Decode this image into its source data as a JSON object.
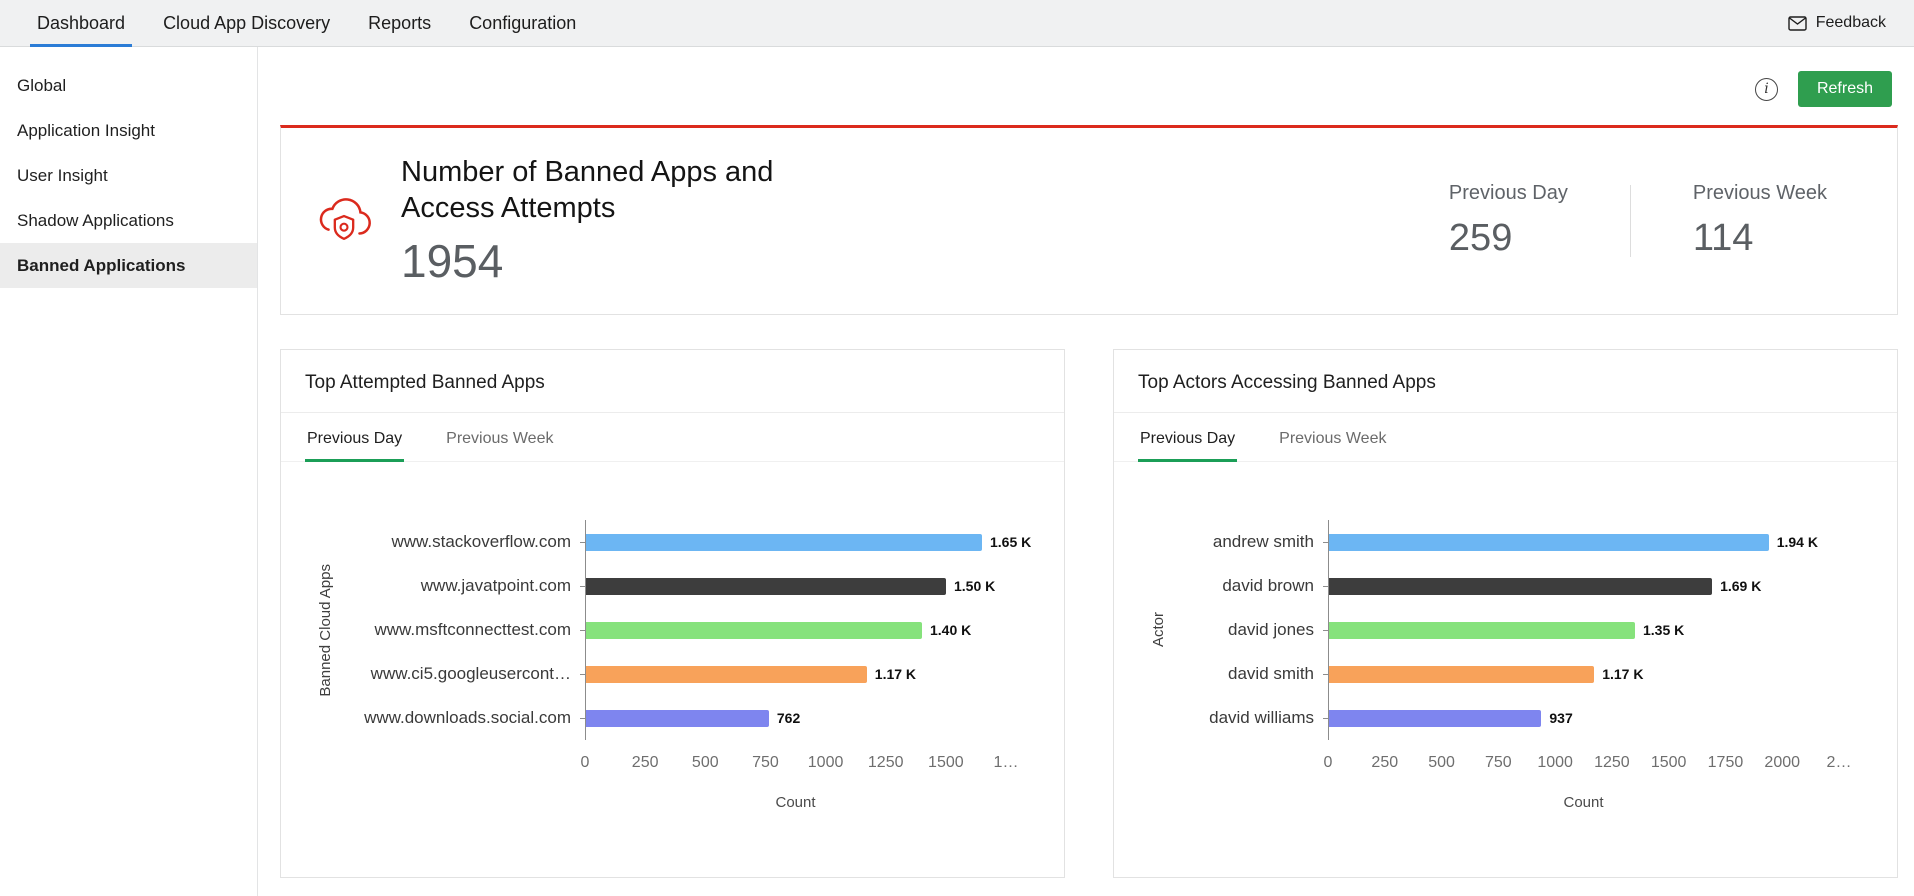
{
  "navbar": {
    "tabs": [
      {
        "label": "Dashboard",
        "active": true
      },
      {
        "label": "Cloud App Discovery",
        "active": false
      },
      {
        "label": "Reports",
        "active": false
      },
      {
        "label": "Configuration",
        "active": false
      }
    ],
    "feedback_label": "Feedback"
  },
  "sidebar": {
    "items": [
      {
        "label": "Global",
        "active": false
      },
      {
        "label": "Application Insight",
        "active": false
      },
      {
        "label": "User Insight",
        "active": false
      },
      {
        "label": "Shadow Applications",
        "active": false
      },
      {
        "label": "Banned Applications",
        "active": true
      }
    ]
  },
  "toolbar": {
    "refresh_label": "Refresh",
    "info_icon": "i"
  },
  "summary": {
    "title": "Number of Banned Apps and Access Attempts",
    "total": "1954",
    "previous_day": {
      "label": "Previous Day",
      "value": "259"
    },
    "previous_week": {
      "label": "Previous Week",
      "value": "114"
    }
  },
  "colors": {
    "accent_red": "#db2a1d",
    "refresh_green": "#2f9e4f",
    "chart_tab_green": "#1b9e57",
    "nav_active_blue": "#2b7cd6",
    "bar_palette": [
      "#6cb6f3",
      "#3d3d3d",
      "#86e27c",
      "#f8a25a",
      "#7e85ef"
    ]
  },
  "chart_data": [
    {
      "type": "bar",
      "orientation": "horizontal",
      "title": "Top Attempted Banned Apps",
      "tabs": [
        {
          "label": "Previous Day",
          "active": true
        },
        {
          "label": "Previous Week",
          "active": false
        }
      ],
      "categories": [
        "www.stackoverflow.com",
        "www.javatpoint.com",
        "www.msftconnecttest.com",
        "www.ci5.googleusercont…",
        "www.downloads.social.com"
      ],
      "values": [
        1650,
        1500,
        1400,
        1170,
        762
      ],
      "value_labels": [
        "1.65 K",
        "1.50 K",
        "1.40 K",
        "1.17 K",
        "762"
      ],
      "bar_colors": [
        "#6cb6f3",
        "#3d3d3d",
        "#86e27c",
        "#f8a25a",
        "#7e85ef"
      ],
      "xlabel": "Count",
      "ylabel": "Banned Cloud Apps",
      "xlim": [
        0,
        1750
      ],
      "xticks": [
        0,
        250,
        500,
        750,
        1000,
        1250,
        1500,
        1750
      ],
      "xtick_labels": [
        "0",
        "250",
        "500",
        "750",
        "1000",
        "1250",
        "1500",
        "1…"
      ],
      "grid": false,
      "legend": "none"
    },
    {
      "type": "bar",
      "orientation": "horizontal",
      "title": "Top Actors Accessing Banned Apps",
      "tabs": [
        {
          "label": "Previous Day",
          "active": true
        },
        {
          "label": "Previous Week",
          "active": false
        }
      ],
      "categories": [
        "andrew smith",
        "david brown",
        "david jones",
        "david smith",
        "david williams"
      ],
      "values": [
        1940,
        1690,
        1350,
        1170,
        937
      ],
      "value_labels": [
        "1.94 K",
        "1.69 K",
        "1.35 K",
        "1.17 K",
        "937"
      ],
      "bar_colors": [
        "#6cb6f3",
        "#3d3d3d",
        "#86e27c",
        "#f8a25a",
        "#7e85ef"
      ],
      "xlabel": "Count",
      "ylabel": "Actor",
      "xlim": [
        0,
        2250
      ],
      "xticks": [
        0,
        250,
        500,
        750,
        1000,
        1250,
        1500,
        1750,
        2000,
        2250
      ],
      "xtick_labels": [
        "0",
        "250",
        "500",
        "750",
        "1000",
        "1250",
        "1500",
        "1750",
        "2000",
        "2…"
      ],
      "grid": false,
      "legend": "none"
    }
  ]
}
